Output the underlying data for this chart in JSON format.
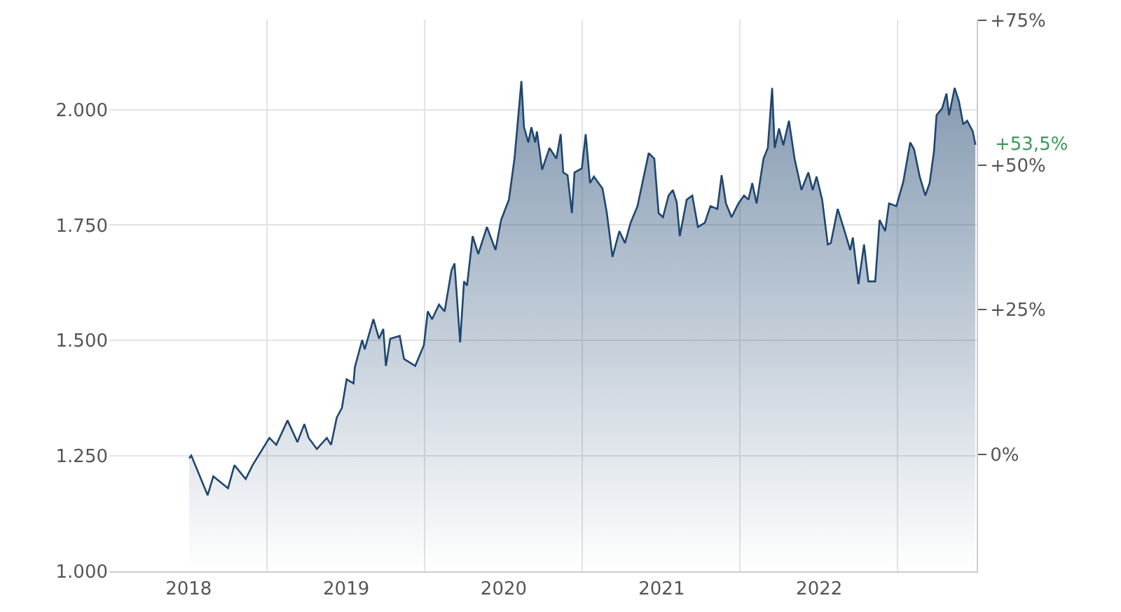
{
  "chart_data": {
    "type": "area",
    "x": [
      "2018-01-02",
      "2018-01-07",
      "2018-02-14",
      "2018-02-27",
      "2018-04-02",
      "2018-04-17",
      "2018-05-13",
      "2018-05-29",
      "2018-07-07",
      "2018-07-23",
      "2018-08-18",
      "2018-09-10",
      "2018-09-26",
      "2018-10-06",
      "2018-10-25",
      "2018-11-17",
      "2018-11-27",
      "2018-12-10",
      "2018-12-22",
      "2019-01-02",
      "2019-01-18",
      "2019-01-21",
      "2019-02-07",
      "2019-02-13",
      "2019-03-05",
      "2019-03-18",
      "2019-03-28",
      "2019-04-03",
      "2019-04-13",
      "2019-05-05",
      "2019-05-15",
      "2019-06-10",
      "2019-06-30",
      "2019-07-09",
      "2019-07-19",
      "2019-08-04",
      "2019-08-17",
      "2019-09-02",
      "2019-09-09",
      "2019-09-22",
      "2019-10-01",
      "2019-10-08",
      "2019-10-21",
      "2019-11-03",
      "2019-11-23",
      "2019-12-13",
      "2019-12-26",
      "2020-01-13",
      "2020-01-26",
      "2020-02-11",
      "2020-02-17",
      "2020-02-27",
      "2020-03-05",
      "2020-03-14",
      "2020-03-18",
      "2020-03-30",
      "2020-04-16",
      "2020-05-02",
      "2020-05-12",
      "2020-05-18",
      "2020-05-28",
      "2020-06-07",
      "2020-06-13",
      "2020-06-30",
      "2020-07-09",
      "2020-07-19",
      "2020-07-28",
      "2020-08-17",
      "2020-08-27",
      "2020-09-09",
      "2020-09-25",
      "2020-10-08",
      "2020-10-21",
      "2020-11-06",
      "2020-11-16",
      "2020-12-02",
      "2020-12-15",
      "2020-12-25",
      "2021-01-04",
      "2021-01-17",
      "2021-01-27",
      "2021-02-05",
      "2021-02-12",
      "2021-02-28",
      "2021-03-13",
      "2021-03-26",
      "2021-04-11",
      "2021-04-24",
      "2021-05-10",
      "2021-05-20",
      "2021-05-30",
      "2021-06-12",
      "2021-06-28",
      "2021-07-11",
      "2021-07-21",
      "2021-07-30",
      "2021-08-09",
      "2021-08-25",
      "2021-09-04",
      "2021-09-14",
      "2021-09-20",
      "2021-09-30",
      "2021-10-10",
      "2021-10-23",
      "2021-11-05",
      "2021-11-21",
      "2021-12-07",
      "2021-12-17",
      "2021-12-26",
      "2022-01-08",
      "2022-01-21",
      "2022-01-28",
      "2022-02-13",
      "2022-03-01",
      "2022-03-14",
      "2022-03-20",
      "2022-04-02",
      "2022-04-15",
      "2022-04-25",
      "2022-05-11",
      "2022-05-21",
      "2022-06-03",
      "2022-06-12",
      "2022-06-29",
      "2022-07-15",
      "2022-07-31",
      "2022-08-09",
      "2022-08-22",
      "2022-09-04",
      "2022-09-14",
      "2022-09-24",
      "2022-09-30",
      "2022-10-13",
      "2022-10-23",
      "2022-10-29",
      "2022-11-11",
      "2022-11-21",
      "2022-12-01",
      "2022-12-10",
      "2022-12-23",
      "2022-12-29"
    ],
    "series": [
      {
        "color": "#1f4670",
        "values": [
          1245,
          1251,
          1165,
          1206,
          1180,
          1230,
          1200,
          1230,
          1289,
          1274,
          1327,
          1280,
          1319,
          1289,
          1265,
          1289,
          1274,
          1333,
          1354,
          1416,
          1407,
          1442,
          1501,
          1481,
          1546,
          1504,
          1525,
          1445,
          1504,
          1510,
          1460,
          1445,
          1490,
          1563,
          1546,
          1578,
          1563,
          1652,
          1667,
          1496,
          1628,
          1619,
          1726,
          1687,
          1746,
          1696,
          1761,
          1805,
          1894,
          2062,
          1962,
          1929,
          1962,
          1929,
          1953,
          1870,
          1917,
          1894,
          1947,
          1864,
          1858,
          1776,
          1864,
          1873,
          1947,
          1841,
          1855,
          1829,
          1776,
          1681,
          1737,
          1711,
          1755,
          1791,
          1835,
          1906,
          1894,
          1776,
          1767,
          1814,
          1826,
          1799,
          1726,
          1805,
          1814,
          1746,
          1755,
          1791,
          1785,
          1858,
          1797,
          1767,
          1797,
          1814,
          1805,
          1841,
          1797,
          1894,
          1917,
          2047,
          1917,
          1959,
          1923,
          1976,
          1894,
          1826,
          1864,
          1826,
          1855,
          1805,
          1708,
          1711,
          1785,
          1737,
          1696,
          1723,
          1622,
          1708,
          1628,
          1628,
          1761,
          1737,
          1797,
          1791,
          1844,
          1929,
          1914,
          1855,
          1814,
          1841,
          1909,
          1988,
          2003,
          2035,
          1988,
          2047,
          2018,
          1968,
          1976,
          1953,
          1924
        ]
      }
    ],
    "annotations": [
      {
        "text": "+53,5%",
        "x": "2022-12-29",
        "y": 1924
      }
    ],
    "xlim": [
      "2017-07-01",
      "2023-01-01"
    ],
    "xticks": [
      {
        "value": "2018-01-01",
        "label": "2018"
      },
      {
        "value": "2018-07-01",
        "label": null
      },
      {
        "value": "2019-01-01",
        "label": "2019"
      },
      {
        "value": "2019-07-01",
        "label": null
      },
      {
        "value": "2020-01-01",
        "label": "2020"
      },
      {
        "value": "2020-07-01",
        "label": null
      },
      {
        "value": "2021-01-01",
        "label": "2021"
      },
      {
        "value": "2021-07-01",
        "label": null
      },
      {
        "value": "2022-01-01",
        "label": "2022"
      },
      {
        "value": "2022-07-01",
        "label": null
      }
    ],
    "ylim": [
      1000,
      2195
    ],
    "yticks": [
      {
        "value": 1000,
        "label": "1.000"
      },
      {
        "value": 1250,
        "label": "1.250"
      },
      {
        "value": 1500,
        "label": "1.500"
      },
      {
        "value": 1750,
        "label": "1.750"
      },
      {
        "value": 2000,
        "label": "2.000"
      }
    ],
    "y2lim": [
      -20.22,
      75.11
    ],
    "y2ticks": [
      {
        "value": 0,
        "label": "0%"
      },
      {
        "value": 25,
        "label": "+25%"
      },
      {
        "value": 50,
        "label": "+50%"
      },
      {
        "value": 75,
        "label": "+75%"
      }
    ],
    "grid": true,
    "marker": "none",
    "line_style": "solid"
  }
}
